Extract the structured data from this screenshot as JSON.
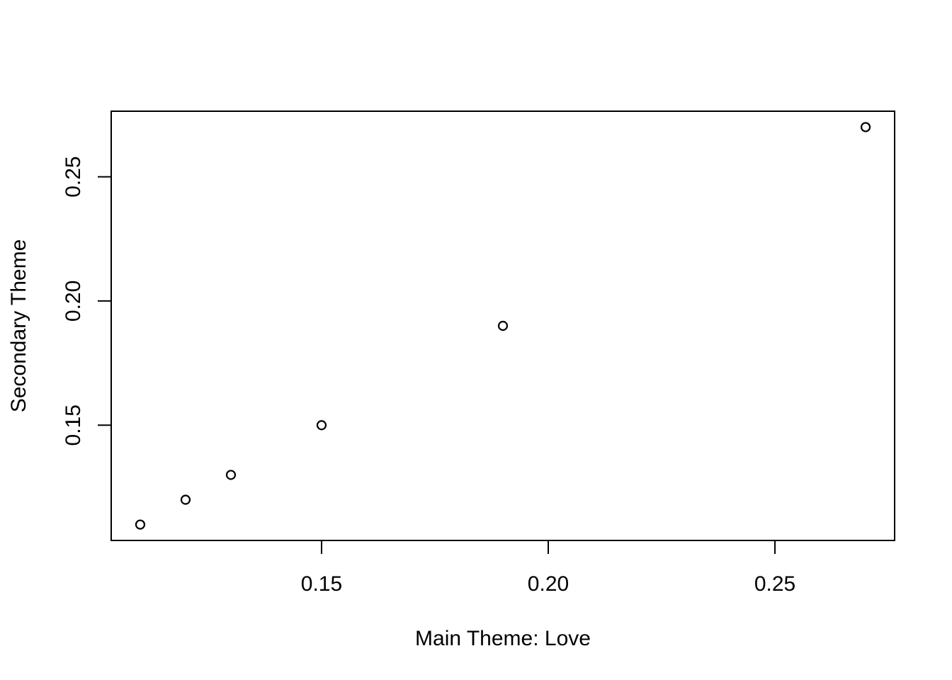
{
  "chart_data": {
    "type": "scatter",
    "title": "",
    "xlabel": "Main Theme: Love",
    "ylabel": "Secondary Theme",
    "x": [
      0.11,
      0.12,
      0.13,
      0.15,
      0.19,
      0.27
    ],
    "y": [
      0.11,
      0.12,
      0.13,
      0.15,
      0.19,
      0.27
    ],
    "xlim": [
      0.1036,
      0.2764
    ],
    "ylim": [
      0.1036,
      0.2764
    ],
    "xticks": [
      0.15,
      0.2,
      0.25
    ],
    "xtick_labels": [
      "0.15",
      "0.20",
      "0.25"
    ],
    "yticks": [
      0.15,
      0.2,
      0.25
    ],
    "ytick_labels": [
      "0.15",
      "0.20",
      "0.25"
    ],
    "grid": false,
    "marker": "open-circle",
    "colors": {
      "points": "#000000",
      "axes": "#000000",
      "background": "#ffffff"
    }
  }
}
